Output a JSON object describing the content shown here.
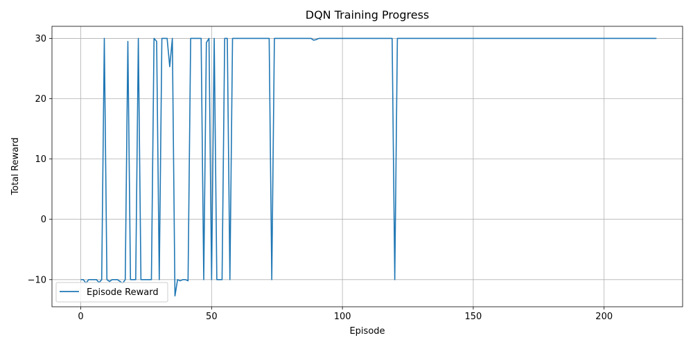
{
  "chart_data": {
    "type": "line",
    "title": "DQN Training Progress",
    "xlabel": "Episode",
    "ylabel": "Total Reward",
    "xlim": [
      -11,
      230
    ],
    "ylim": [
      -14.5,
      32
    ],
    "xticks": [
      0,
      50,
      100,
      150,
      200
    ],
    "yticks": [
      -10,
      0,
      10,
      20,
      30
    ],
    "grid": true,
    "legend_position": "lower-left",
    "series": [
      {
        "name": "Episode Reward",
        "color": "#1f77b4",
        "points": [
          [
            0,
            -10
          ],
          [
            1,
            -10
          ],
          [
            2,
            -10.6
          ],
          [
            3,
            -10
          ],
          [
            4,
            -10
          ],
          [
            5,
            -10
          ],
          [
            6,
            -10
          ],
          [
            7,
            -10.5
          ],
          [
            8,
            -10
          ],
          [
            9,
            30
          ],
          [
            10,
            -10
          ],
          [
            11,
            -10.3
          ],
          [
            12,
            -10
          ],
          [
            13,
            -10
          ],
          [
            14,
            -10
          ],
          [
            15,
            -10.3
          ],
          [
            16,
            -10.6
          ],
          [
            17,
            -10
          ],
          [
            18,
            29.5
          ],
          [
            19,
            -10
          ],
          [
            20,
            -10
          ],
          [
            21,
            -10
          ],
          [
            22,
            30
          ],
          [
            23,
            -10
          ],
          [
            24,
            -10
          ],
          [
            25,
            -10
          ],
          [
            26,
            -10
          ],
          [
            27,
            -10
          ],
          [
            28,
            30
          ],
          [
            29,
            29.5
          ],
          [
            30,
            -10
          ],
          [
            31,
            30
          ],
          [
            32,
            30
          ],
          [
            33,
            30
          ],
          [
            34,
            25.3
          ],
          [
            35,
            30
          ],
          [
            36,
            -12.7
          ],
          [
            37,
            -10
          ],
          [
            38,
            -10.2
          ],
          [
            39,
            -10
          ],
          [
            40,
            -10
          ],
          [
            41,
            -10.2
          ],
          [
            42,
            30
          ],
          [
            43,
            30
          ],
          [
            44,
            30
          ],
          [
            45,
            30
          ],
          [
            46,
            30
          ],
          [
            47,
            -10
          ],
          [
            48,
            29.3
          ],
          [
            49,
            30
          ],
          [
            50,
            -10
          ],
          [
            51,
            30
          ],
          [
            52,
            -10
          ],
          [
            53,
            -10
          ],
          [
            54,
            -10
          ],
          [
            55,
            30
          ],
          [
            56,
            30
          ],
          [
            57,
            -10
          ],
          [
            58,
            30
          ],
          [
            59,
            30
          ],
          [
            60,
            30
          ],
          [
            65,
            30
          ],
          [
            70,
            30
          ],
          [
            72,
            30
          ],
          [
            73,
            -10
          ],
          [
            74,
            30
          ],
          [
            75,
            30
          ],
          [
            80,
            30
          ],
          [
            85,
            30
          ],
          [
            88,
            30
          ],
          [
            89,
            29.7
          ],
          [
            90,
            29.8
          ],
          [
            91,
            30
          ],
          [
            100,
            30
          ],
          [
            110,
            30
          ],
          [
            119,
            30
          ],
          [
            120,
            -10
          ],
          [
            121,
            30
          ],
          [
            122,
            30
          ],
          [
            150,
            30
          ],
          [
            180,
            30
          ],
          [
            200,
            30
          ],
          [
            220,
            30
          ]
        ]
      }
    ]
  }
}
